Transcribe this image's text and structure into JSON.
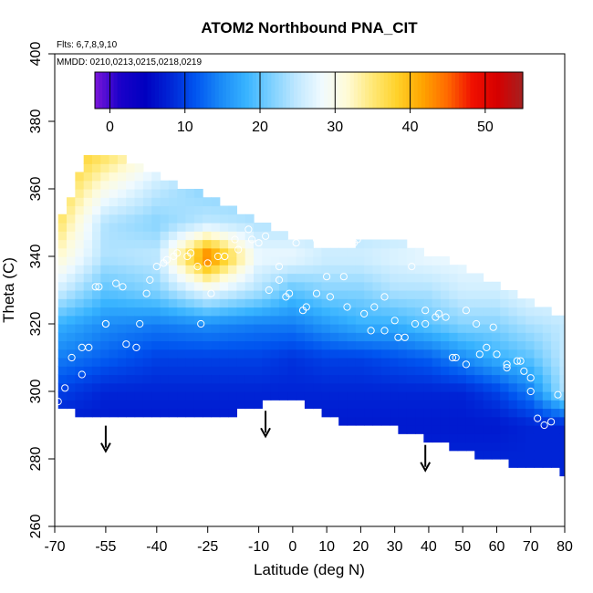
{
  "chart_data": {
    "type": "heatmap",
    "title": "ATOM2 Northbound PNA_CIT",
    "subtitle_flights": "Flts: 6,7,8,9,10",
    "subtitle_dates": "MMDD: 0210,0213,0215,0218,0219",
    "xlabel": "Latitude (deg N)",
    "ylabel": "Theta (C)",
    "xlim": [
      -70,
      80
    ],
    "ylim": [
      260,
      400
    ],
    "x_ticks": [
      -70,
      -55,
      -40,
      -25,
      -10,
      0,
      10,
      20,
      30,
      40,
      50,
      60,
      70,
      80
    ],
    "x_tick_labels": [
      "-70",
      "-55",
      "-40",
      "-25",
      "-10",
      "0",
      "10",
      "20",
      "30",
      "40",
      "50",
      "60",
      "70",
      "80"
    ],
    "y_ticks": [
      260,
      280,
      300,
      320,
      340,
      360,
      380,
      400
    ],
    "y_tick_labels": [
      "260",
      "280",
      "300",
      "320",
      "340",
      "360",
      "380",
      "400"
    ],
    "colorbar": {
      "range": [
        -2,
        55
      ],
      "ticks": [
        0,
        10,
        20,
        30,
        40,
        50
      ],
      "tick_labels": [
        "0",
        "10",
        "20",
        "30",
        "40",
        "50"
      ],
      "colors": [
        "#7b16d9",
        "#1a00c9",
        "#0000c0",
        "#0025d6",
        "#0055f0",
        "#1a8af7",
        "#37b3ff",
        "#7cd0ff",
        "#bfe8ff",
        "#f0faff",
        "#fffbd8",
        "#ffe97a",
        "#ffd22a",
        "#ffa500",
        "#ff6a00",
        "#f01000",
        "#d60000",
        "#a52020"
      ]
    },
    "field_grid": {
      "x": [
        -69,
        -55,
        -40,
        -25,
        -10,
        0,
        10,
        20,
        30,
        40,
        50,
        60,
        70,
        80
      ],
      "y": [
        280,
        290,
        300,
        310,
        320,
        330,
        340,
        350,
        360,
        370
      ],
      "values": [
        [
          8,
          8,
          8,
          8,
          8,
          8,
          8,
          8,
          8,
          8,
          8,
          8,
          8,
          8
        ],
        [
          7,
          7,
          7,
          7,
          7,
          7,
          7,
          7,
          7,
          7,
          7,
          7,
          8,
          8
        ],
        [
          10,
          8,
          8,
          8,
          8,
          8,
          8,
          8,
          8,
          8,
          8,
          10,
          14,
          24
        ],
        [
          14,
          12,
          10,
          10,
          10,
          9,
          10,
          10,
          11,
          12,
          15,
          18,
          20,
          25
        ],
        [
          18,
          15,
          14,
          15,
          14,
          14,
          16,
          18,
          18,
          20,
          22,
          22,
          24,
          25
        ],
        [
          26,
          20,
          22,
          28,
          24,
          20,
          22,
          22,
          24,
          24,
          26,
          26,
          28,
          28
        ],
        [
          32,
          24,
          25,
          45,
          28,
          28,
          26,
          26,
          27,
          28,
          28,
          28,
          28,
          28
        ],
        [
          36,
          24,
          22,
          25,
          24,
          24,
          24,
          24,
          24,
          24,
          24,
          24,
          24,
          24
        ],
        [
          38,
          30,
          25,
          22,
          22,
          22,
          22,
          22,
          22,
          22,
          22,
          22,
          22,
          22
        ],
        [
          40,
          36,
          30,
          28,
          25,
          25,
          25,
          25,
          25,
          25,
          25,
          25,
          25,
          25
        ]
      ]
    },
    "data_bounds": {
      "x": [
        -69,
        -60,
        -50,
        -40,
        -30,
        -25,
        -20,
        -10,
        -5,
        0,
        3,
        10,
        20,
        30,
        40,
        50,
        60,
        70,
        75,
        80
      ],
      "top": [
        350,
        370,
        369,
        364,
        360,
        358,
        356,
        350,
        348,
        345,
        344,
        343,
        344,
        345,
        341,
        337,
        332,
        327,
        325,
        322
      ],
      "bottom": [
        296,
        292,
        292,
        292,
        292,
        292,
        292,
        296,
        297,
        298,
        297,
        292,
        290,
        289,
        286,
        282,
        279,
        278,
        277,
        276
      ]
    },
    "observation_points": {
      "x": [
        -69,
        -67,
        -65,
        -62,
        -60,
        -57,
        -55,
        -52,
        -49,
        -45,
        -42,
        -40,
        -37,
        -34,
        -31,
        -28,
        -25,
        -22,
        -20,
        -17,
        -13,
        -10,
        -7,
        -4,
        -2,
        1,
        4,
        7,
        10,
        13,
        16,
        18,
        21,
        24,
        27,
        30,
        33,
        36,
        39,
        42,
        45,
        48,
        51,
        54,
        57,
        60,
        63,
        66,
        68,
        70,
        72,
        74,
        76,
        78,
        -62,
        -58,
        -55,
        -50,
        -46,
        -43,
        -38,
        -35,
        -30,
        -27,
        -24,
        -20,
        -16,
        -12,
        -8,
        -4,
        -1,
        3,
        7,
        11,
        15,
        19,
        23,
        27,
        31,
        35,
        39,
        43,
        47,
        51,
        55,
        59,
        63,
        67,
        70
      ],
      "y": [
        297,
        301,
        310,
        305,
        313,
        331,
        320,
        332,
        314,
        320,
        333,
        337,
        339,
        341,
        340,
        337,
        338,
        340,
        340,
        345,
        348,
        344,
        330,
        337,
        328,
        344,
        325,
        329,
        334,
        345,
        325,
        344,
        323,
        325,
        318,
        321,
        316,
        320,
        324,
        322,
        322,
        310,
        308,
        320,
        313,
        311,
        307,
        309,
        306,
        304,
        292,
        290,
        291,
        299,
        313,
        331,
        320,
        331,
        313,
        329,
        338,
        340,
        341,
        320,
        329,
        340,
        342,
        345,
        346,
        333,
        329,
        324,
        345,
        328,
        334,
        345,
        318,
        328,
        316,
        337,
        320,
        323,
        310,
        324,
        311,
        319,
        308,
        309,
        300
      ]
    },
    "arrows_x": [
      -55,
      -8,
      39
    ]
  }
}
